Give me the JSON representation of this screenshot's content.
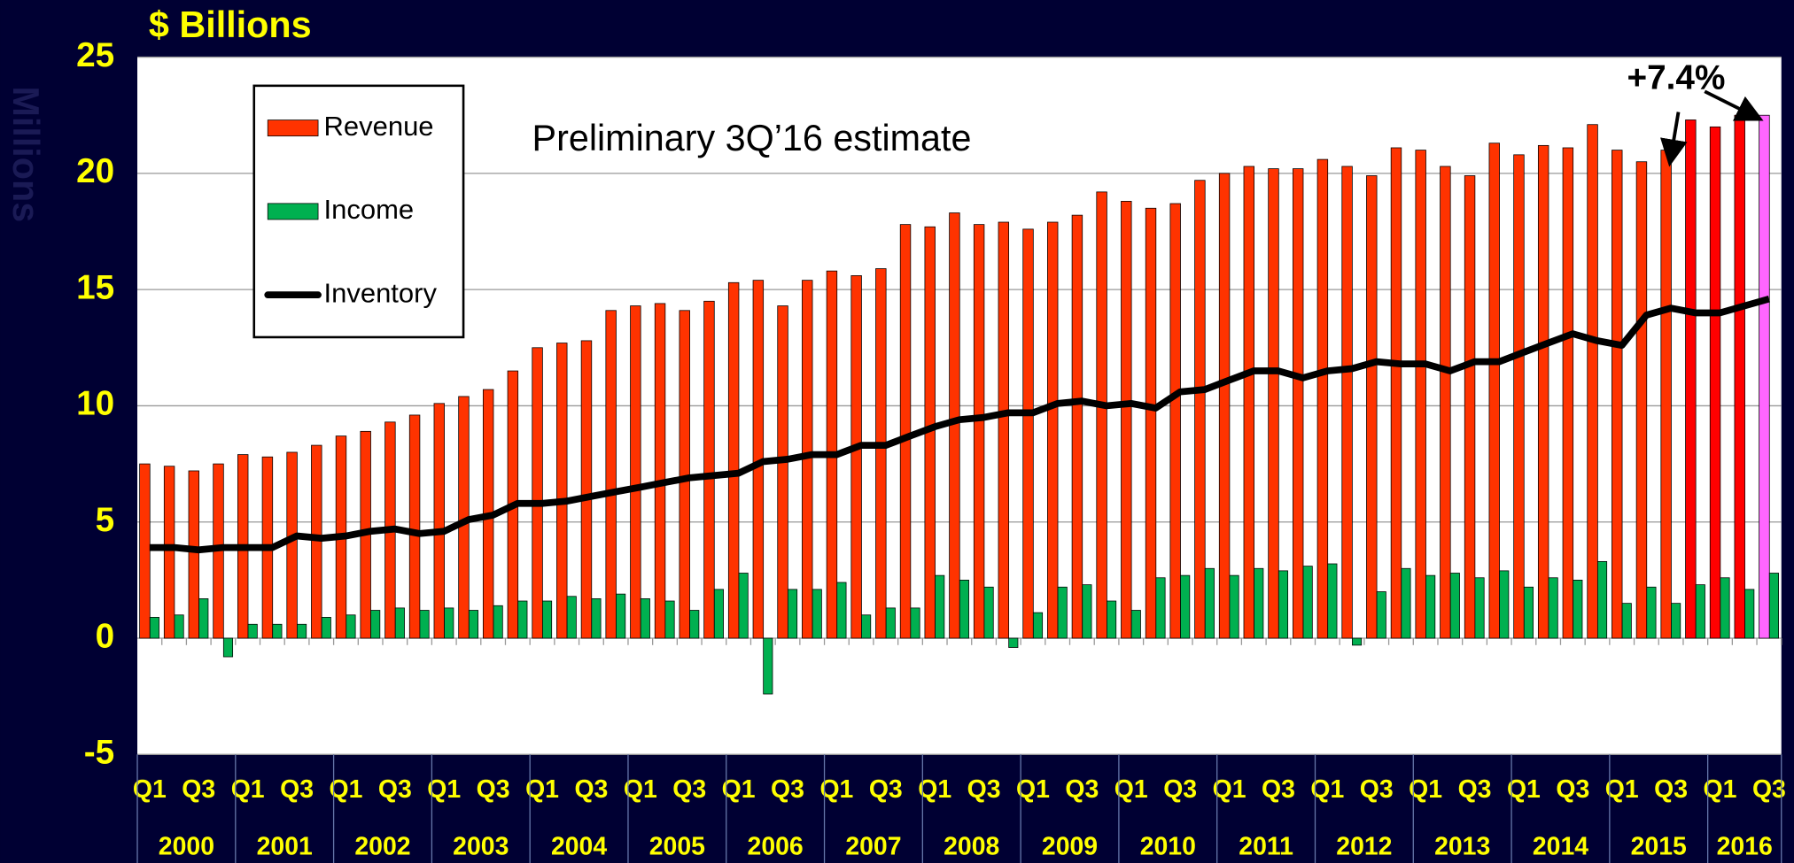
{
  "chart_data": {
    "type": "bar_line",
    "title": "$ Billions",
    "y_label": "Millions",
    "annotation": "Preliminary 3Q’16 estimate",
    "callout": "+7.4%",
    "categories": [
      "Q1",
      null,
      "Q3",
      null,
      "Q1",
      null,
      "Q3",
      null,
      "Q1",
      null,
      "Q3",
      null,
      "Q1",
      null,
      "Q3",
      null,
      "Q1",
      null,
      "Q3",
      null,
      "Q1",
      null,
      "Q3",
      null,
      "Q1",
      null,
      "Q3",
      null,
      "Q1",
      null,
      "Q3",
      null,
      "Q1",
      null,
      "Q3",
      null,
      "Q1",
      null,
      "Q3",
      null,
      "Q1",
      null,
      "Q3",
      null,
      "Q1",
      null,
      "Q3",
      null,
      "Q1",
      null,
      "Q3",
      null,
      "Q1",
      null,
      "Q3",
      null,
      "Q1",
      null,
      "Q3",
      null,
      "Q1",
      null,
      "Q3",
      null,
      "Q1",
      null,
      "Q3"
    ],
    "years": [
      "2000",
      "2001",
      "2002",
      "2003",
      "2004",
      "2005",
      "2006",
      "2007",
      "2008",
      "2009",
      "2010",
      "2011",
      "2012",
      "2013",
      "2014",
      "2015",
      "2016"
    ],
    "ylim": [
      -5,
      25
    ],
    "yticks": [
      -5,
      0,
      5,
      10,
      15,
      20,
      25
    ],
    "grid": true,
    "series": [
      {
        "name": "Revenue",
        "kind": "bar",
        "color": "#ff3300",
        "colors": [
          "#ff3300",
          "#ff3300",
          "#ff3300",
          "#ff3300",
          "#ff3300",
          "#ff3300",
          "#ff3300",
          "#ff3300",
          "#ff3300",
          "#ff3300",
          "#ff3300",
          "#ff3300",
          "#ff3300",
          "#ff3300",
          "#ff3300",
          "#ff3300",
          "#ff3300",
          "#ff3300",
          "#ff3300",
          "#ff3300",
          "#ff3300",
          "#ff3300",
          "#ff3300",
          "#ff3300",
          "#ff3300",
          "#ff3300",
          "#ff3300",
          "#ff3300",
          "#ff3300",
          "#ff3300",
          "#ff3300",
          "#ff3300",
          "#ff3300",
          "#ff3300",
          "#ff3300",
          "#ff3300",
          "#ff3300",
          "#ff3300",
          "#ff3300",
          "#ff3300",
          "#ff3300",
          "#ff3300",
          "#ff3300",
          "#ff3300",
          "#ff3300",
          "#ff3300",
          "#ff3300",
          "#ff3300",
          "#ff3300",
          "#ff3300",
          "#ff3300",
          "#ff3300",
          "#ff3300",
          "#ff3300",
          "#ff3300",
          "#ff3300",
          "#ff3300",
          "#ff3300",
          "#ff3300",
          "#ff3300",
          "#ff3300",
          "#ff3300",
          "#ff3300",
          "#ff0000",
          "#ff0000",
          "#ff0000",
          "#ff66ff"
        ],
        "values": [
          7.5,
          7.4,
          7.2,
          7.5,
          7.9,
          7.8,
          8.0,
          8.3,
          8.7,
          8.9,
          9.3,
          9.6,
          10.1,
          10.4,
          10.7,
          11.5,
          12.5,
          12.7,
          12.8,
          14.1,
          14.3,
          14.4,
          14.1,
          14.5,
          15.3,
          15.4,
          14.3,
          15.4,
          15.8,
          15.6,
          15.9,
          17.8,
          17.7,
          18.3,
          17.8,
          17.9,
          17.6,
          17.9,
          18.2,
          19.2,
          18.8,
          18.5,
          18.7,
          19.7,
          20.0,
          20.3,
          20.2,
          20.2,
          20.6,
          20.3,
          19.9,
          21.1,
          21.0,
          20.3,
          19.9,
          21.3,
          20.8,
          21.2,
          21.1,
          22.1,
          21.0,
          20.5,
          21.0,
          22.3,
          22.0,
          22.5,
          22.5
        ]
      },
      {
        "name": "Income",
        "kind": "bar",
        "color": "#00b050",
        "values": [
          0.9,
          1.0,
          1.7,
          -0.8,
          0.6,
          0.6,
          0.6,
          0.9,
          1.0,
          1.2,
          1.3,
          1.2,
          1.3,
          1.2,
          1.4,
          1.6,
          1.6,
          1.8,
          1.7,
          1.9,
          1.7,
          1.6,
          1.2,
          2.1,
          2.8,
          -2.4,
          2.1,
          2.1,
          2.4,
          1.0,
          1.3,
          1.3,
          2.7,
          2.5,
          2.2,
          -0.4,
          1.1,
          2.2,
          2.3,
          1.6,
          1.2,
          2.6,
          2.7,
          3.0,
          2.7,
          3.0,
          2.9,
          3.1,
          3.2,
          -0.3,
          2.0,
          3.0,
          2.7,
          2.8,
          2.6,
          2.9,
          2.2,
          2.6,
          2.5,
          3.3,
          1.5,
          2.2,
          1.5,
          2.3,
          2.6,
          2.1,
          2.8
        ]
      },
      {
        "name": "Inventory",
        "kind": "line",
        "color": "#000000",
        "values": [
          3.9,
          3.9,
          3.8,
          3.9,
          3.9,
          3.9,
          4.4,
          4.3,
          4.4,
          4.6,
          4.7,
          4.5,
          4.6,
          5.1,
          5.3,
          5.8,
          5.8,
          5.9,
          6.1,
          6.3,
          6.5,
          6.7,
          6.9,
          7.0,
          7.1,
          7.6,
          7.7,
          7.9,
          7.9,
          8.3,
          8.3,
          8.7,
          9.1,
          9.4,
          9.5,
          9.7,
          9.7,
          10.1,
          10.2,
          10.0,
          10.1,
          9.9,
          10.6,
          10.7,
          11.1,
          11.5,
          11.5,
          11.2,
          11.5,
          11.6,
          11.9,
          11.8,
          11.8,
          11.5,
          11.9,
          11.9,
          12.3,
          12.7,
          13.1,
          12.8,
          12.6,
          13.9,
          14.2,
          14.0,
          14.0,
          14.3,
          14.6
        ]
      }
    ]
  }
}
